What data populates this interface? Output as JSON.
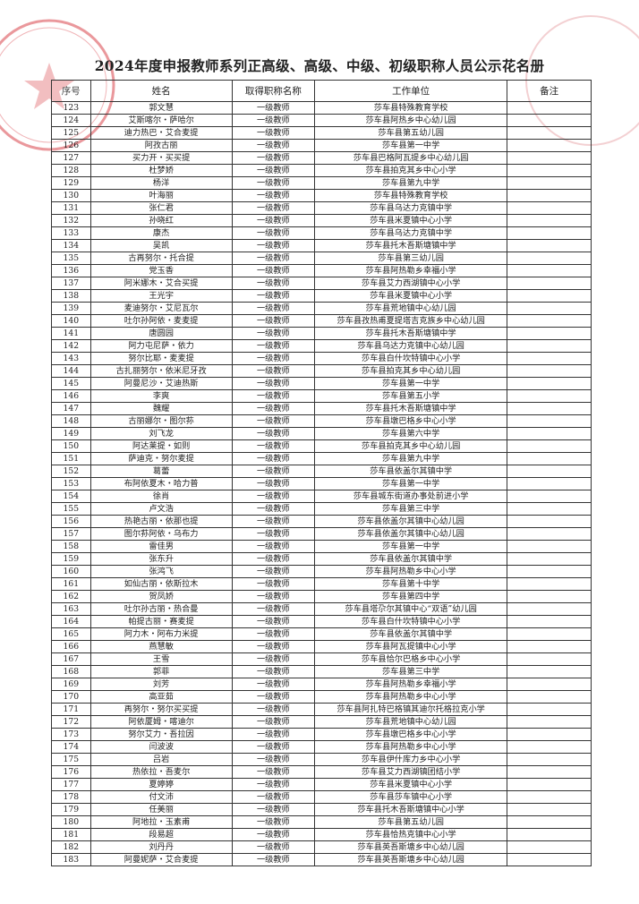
{
  "title": "2024年度申报教师系列正高级、高级、中级、初级职称人员公示花名册",
  "headers": [
    "序号",
    "姓名",
    "取得职称名称",
    "工作单位",
    "备注"
  ],
  "stamp_color": "#d9444a",
  "rows": [
    [
      "123",
      "郭文慧",
      "一级教师",
      "莎车县特殊教育学校",
      ""
    ],
    [
      "124",
      "艾斯喀尔・萨哈尔",
      "一级教师",
      "莎车县阿热乡中心幼儿园",
      ""
    ],
    [
      "125",
      "迪力热巴・艾合麦提",
      "一级教师",
      "莎车县第五幼儿园",
      ""
    ],
    [
      "126",
      "阿孜古丽",
      "一级教师",
      "莎车县第一中学",
      ""
    ],
    [
      "127",
      "买力开・买买提",
      "一级教师",
      "莎车县巴格阿瓦提乡中心幼儿园",
      ""
    ],
    [
      "128",
      "杜梦娇",
      "一级教师",
      "莎车县拍克其乡中心小学",
      ""
    ],
    [
      "129",
      "杨洋",
      "一级教师",
      "莎车县第九中学",
      ""
    ],
    [
      "130",
      "叶海丽",
      "一级教师",
      "莎车县特殊教育学校",
      ""
    ],
    [
      "131",
      "张仁君",
      "一级教师",
      "莎车县乌达力克镇中学",
      ""
    ],
    [
      "132",
      "孙晓红",
      "一级教师",
      "莎车县米夏镇中心小学",
      ""
    ],
    [
      "133",
      "康杰",
      "一级教师",
      "莎车县乌达力克镇中学",
      ""
    ],
    [
      "134",
      "吴凯",
      "一级教师",
      "莎车县托木吾斯塘镇中学",
      ""
    ],
    [
      "135",
      "古再努尔・托合提",
      "一级教师",
      "莎车县第三幼儿园",
      ""
    ],
    [
      "136",
      "党玉香",
      "一级教师",
      "莎车县阿热勒乡幸福小学",
      ""
    ],
    [
      "137",
      "阿米娜木・艾合买提",
      "一级教师",
      "莎车县艾力西湖镇中心小学",
      ""
    ],
    [
      "138",
      "王光宇",
      "一级教师",
      "莎车县米夏镇中心小学",
      ""
    ],
    [
      "139",
      "麦迪努尔・艾尼瓦尔",
      "一级教师",
      "莎车县荒地镇中心幼儿园",
      ""
    ],
    [
      "140",
      "吐尔孙阿依・麦麦提",
      "一级教师",
      "莎车县孜热甫夏提塔吉克族乡中心幼儿园",
      ""
    ],
    [
      "141",
      "唐圆园",
      "一级教师",
      "莎车县托木吾斯塘镇中学",
      ""
    ],
    [
      "142",
      "阿力屯尼萨・依力",
      "一级教师",
      "莎车县乌达力克镇中心幼儿园",
      ""
    ],
    [
      "143",
      "努尔比耶・麦麦提",
      "一级教师",
      "莎车县白什坎特镇中心小学",
      ""
    ],
    [
      "144",
      "古扎丽努尔・依米尼牙孜",
      "一级教师",
      "莎车县拍克其乡中心幼儿园",
      ""
    ],
    [
      "145",
      "阿曼尼沙・艾迪热斯",
      "一级教师",
      "莎车县第一中学",
      ""
    ],
    [
      "146",
      "李爽",
      "一级教师",
      "莎车县第五小学",
      ""
    ],
    [
      "147",
      "魏耀",
      "一级教师",
      "莎车县托木吾斯塘镇中学",
      ""
    ],
    [
      "148",
      "古丽娜尔・图尔荪",
      "一级教师",
      "莎车县墩巴格乡中心小学",
      ""
    ],
    [
      "149",
      "刘飞龙",
      "一级教师",
      "莎车县第六中学",
      ""
    ],
    [
      "150",
      "阿达莱提・如则",
      "一级教师",
      "莎车县拍克其乡中心幼儿园",
      ""
    ],
    [
      "151",
      "萨迪克・努尔麦提",
      "一级教师",
      "莎车县第九中学",
      ""
    ],
    [
      "152",
      "葛蕾",
      "一级教师",
      "莎车县依盖尔其镇中学",
      ""
    ],
    [
      "153",
      "布阿依夏木・哈力普",
      "一级教师",
      "莎车县第一中学",
      ""
    ],
    [
      "154",
      "徐肖",
      "一级教师",
      "莎车县城东街道办事处前进小学",
      ""
    ],
    [
      "155",
      "卢文浩",
      "一级教师",
      "莎车县第三中学",
      ""
    ],
    [
      "156",
      "热艳古丽・依那也提",
      "一级教师",
      "莎车县依盖尔其镇中心幼儿园",
      ""
    ],
    [
      "157",
      "图尔荪阿依・乌布力",
      "一级教师",
      "莎车县依盖尔其镇中心幼儿园",
      ""
    ],
    [
      "158",
      "雷佳男",
      "一级教师",
      "莎车县第一中学",
      ""
    ],
    [
      "159",
      "张东升",
      "一级教师",
      "莎车县依盖尔其镇中学",
      ""
    ],
    [
      "160",
      "张鸿飞",
      "一级教师",
      "莎车县阿热勒乡中心小学",
      ""
    ],
    [
      "161",
      "如仙古丽・依斯拉木",
      "一级教师",
      "莎车县第十中学",
      ""
    ],
    [
      "162",
      "贺凤娇",
      "一级教师",
      "莎车县第四中学",
      ""
    ],
    [
      "163",
      "吐尔孙古丽・热合曼",
      "一级教师",
      "莎车县塔尕尔其镇中心“双语”幼儿园",
      ""
    ],
    [
      "164",
      "帕提古丽・赛麦提",
      "一级教师",
      "莎车县白什坎特镇中心小学",
      ""
    ],
    [
      "165",
      "阿力木・阿布力米提",
      "一级教师",
      "莎车县依盖尔其镇中学",
      ""
    ],
    [
      "166",
      "燕慧敏",
      "一级教师",
      "莎车县阿瓦提镇中心小学",
      ""
    ],
    [
      "167",
      "王雪",
      "一级教师",
      "莎车县恰尔巴格乡中心小学",
      ""
    ],
    [
      "168",
      "郭菲",
      "一级教师",
      "莎车县第三中学",
      ""
    ],
    [
      "169",
      "刘芳",
      "一级教师",
      "莎车县阿热勒乡幸福小学",
      ""
    ],
    [
      "170",
      "高亚茹",
      "一级教师",
      "莎车县阿热勒乡中心小学",
      ""
    ],
    [
      "171",
      "再努尔・努尔买买提",
      "一级教师",
      "莎车县阿扎特巴格镇其迪尔托格拉克小学",
      ""
    ],
    [
      "172",
      "阿依厦姆・喀迪尔",
      "一级教师",
      "莎车县荒地镇中心幼儿园",
      ""
    ],
    [
      "173",
      "努尔艾力・吾拉因",
      "一级教师",
      "莎车县墩巴格乡中心小学",
      ""
    ],
    [
      "174",
      "闫波波",
      "一级教师",
      "莎车县阿热勒乡中心小学",
      ""
    ],
    [
      "175",
      "吕岩",
      "一级教师",
      "莎车县伊什库力乡中心小学",
      ""
    ],
    [
      "176",
      "热依拉・吾麦尔",
      "一级教师",
      "莎车县艾力西湖镇团结小学",
      ""
    ],
    [
      "177",
      "夏婷婷",
      "一级教师",
      "莎车县米夏镇中心小学",
      ""
    ],
    [
      "178",
      "付文沛",
      "一级教师",
      "莎车县莎车镇中心小学",
      ""
    ],
    [
      "179",
      "任美丽",
      "一级教师",
      "莎车县托木吾斯塘镇中心小学",
      ""
    ],
    [
      "180",
      "阿地拉・玉素甫",
      "一级教师",
      "莎车县第五幼儿园",
      ""
    ],
    [
      "181",
      "段易超",
      "一级教师",
      "莎车县恰热克镇中心小学",
      ""
    ],
    [
      "182",
      "刘丹丹",
      "一级教师",
      "莎车县英吾斯塘乡中心幼儿园",
      ""
    ],
    [
      "183",
      "阿曼妮萨・艾合麦提",
      "一级教师",
      "莎车县英吾斯塘乡中心幼儿园",
      ""
    ]
  ]
}
